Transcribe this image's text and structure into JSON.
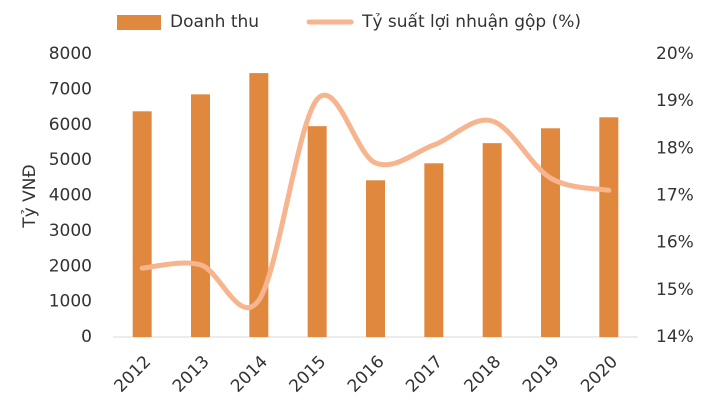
{
  "chart_data": {
    "type": "bar",
    "categories": [
      "2012",
      "2013",
      "2014",
      "2015",
      "2016",
      "2017",
      "2018",
      "2019",
      "2020"
    ],
    "ylabel": "Tỷ VNĐ",
    "ylim": [
      0,
      8000
    ],
    "yticks": [
      0,
      1000,
      2000,
      3000,
      4000,
      5000,
      6000,
      7000,
      8000
    ],
    "y2lim": [
      14,
      20
    ],
    "y2ticks": [
      {
        "value": 14,
        "label": "14%"
      },
      {
        "value": 15,
        "label": "15%"
      },
      {
        "value": 16,
        "label": "16%"
      },
      {
        "value": 17,
        "label": "17%"
      },
      {
        "value": 18,
        "label": "18%"
      },
      {
        "value": 19,
        "label": "19%"
      },
      {
        "value": 20,
        "label": "20%"
      }
    ],
    "grid": false,
    "legend": "top",
    "series": [
      {
        "name": "Doanh thu",
        "type": "bar",
        "color": "#e0893e",
        "values": [
          6380,
          6860,
          7460,
          5960,
          4430,
          4910,
          5480,
          5900,
          6210
        ]
      },
      {
        "name": "Tỷ suất lợi nhuận gộp (%)",
        "type": "line",
        "axis": "y2",
        "smooth": true,
        "color": "#f6b48f",
        "values": [
          15.46,
          15.53,
          14.78,
          19.04,
          17.69,
          18.07,
          18.58,
          17.37,
          17.11
        ]
      }
    ]
  }
}
